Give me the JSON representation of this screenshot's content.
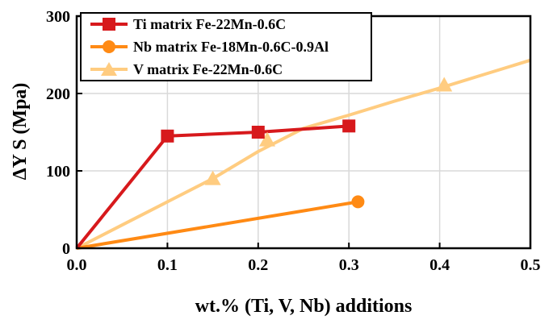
{
  "chart_data": {
    "type": "line",
    "title": "",
    "xlabel": "wt.% (Ti, V, Nb) additions",
    "ylabel": "ΔY S (Mpa)",
    "xlim": [
      0.0,
      0.5
    ],
    "ylim": [
      0,
      300
    ],
    "xticks": [
      0.0,
      0.1,
      0.2,
      0.3,
      0.4,
      0.5
    ],
    "xtick_labels": [
      "0.0",
      "0.1",
      "0.2",
      "0.3",
      "0.4",
      "0.5"
    ],
    "yticks": [
      0,
      100,
      200,
      300
    ],
    "ytick_labels": [
      "0",
      "100",
      "200",
      "300"
    ],
    "grid": true,
    "legend_position": "top-left",
    "series": [
      {
        "name": "Ti matrix Fe-22Mn-0.6C",
        "color": "#d7191c",
        "marker": "square",
        "line_x": [
          0.0,
          0.1,
          0.2,
          0.3
        ],
        "line_y": [
          0,
          145,
          150,
          158
        ],
        "points_x": [
          0.1,
          0.2,
          0.3
        ],
        "points_y": [
          145,
          150,
          158
        ]
      },
      {
        "name": "Nb matrix Fe-18Mn-0.6C-0.9Al",
        "color": "#ff8a14",
        "marker": "circle",
        "line_x": [
          0.0,
          0.31
        ],
        "line_y": [
          0,
          60
        ],
        "points_x": [
          0.31
        ],
        "points_y": [
          60
        ]
      },
      {
        "name": "V matrix Fe-22Mn-0.6C",
        "color": "#ffcc80",
        "marker": "triangle",
        "line_x": [
          0.0,
          0.05,
          0.1,
          0.15,
          0.2,
          0.25,
          0.3,
          0.35,
          0.4,
          0.45,
          0.5
        ],
        "line_y": [
          0,
          30,
          60,
          90,
          125,
          155,
          172,
          190,
          207,
          225,
          243
        ],
        "points_x": [
          0.15,
          0.21,
          0.405
        ],
        "points_y": [
          90,
          140,
          211
        ]
      }
    ]
  }
}
